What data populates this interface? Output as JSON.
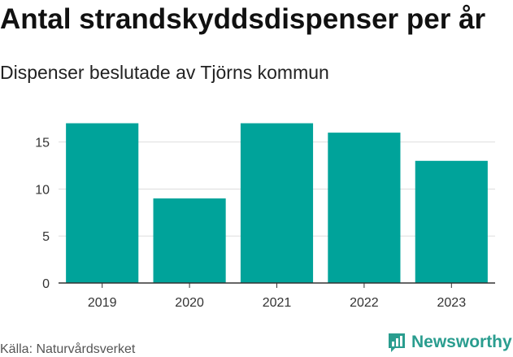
{
  "header": {
    "title": "Antal strandskyddsdispenser per år",
    "subtitle": "Dispenser beslutade av Tjörns kommun"
  },
  "footer": {
    "source": "Källa: Naturvårdsverket",
    "brand": "Newsworthy",
    "brand_icon": "bar-chart-logo-icon"
  },
  "colors": {
    "bar": "#00A39A",
    "grid": "#DDDDDD",
    "axis": "#333333",
    "brand": "#2A9D8F"
  },
  "chart_data": {
    "type": "bar",
    "title": "Antal strandskyddsdispenser per år",
    "subtitle": "Dispenser beslutade av Tjörns kommun",
    "categories": [
      "2019",
      "2020",
      "2021",
      "2022",
      "2023"
    ],
    "values": [
      17,
      9,
      17,
      16,
      13
    ],
    "xlabel": "",
    "ylabel": "",
    "ylim": [
      0,
      18
    ],
    "yticks": [
      0,
      5,
      10,
      15
    ],
    "grid": true,
    "legend": "none"
  }
}
